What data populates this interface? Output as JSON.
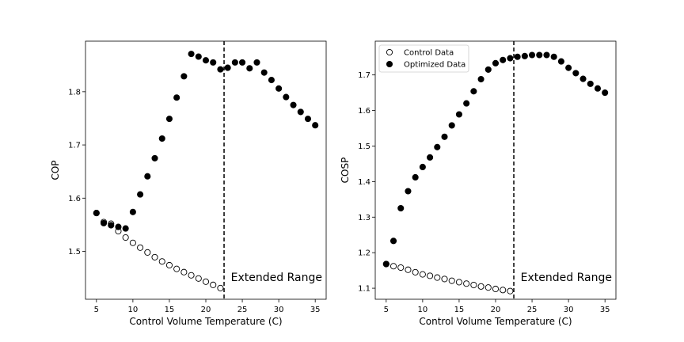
{
  "chart_data": [
    {
      "type": "scatter",
      "xlabel": "Control Volume Temperature (C)",
      "ylabel": "COP",
      "xlim": [
        3.5,
        36.5
      ],
      "ylim": [
        1.41,
        1.895
      ],
      "x_ticks": [
        5,
        10,
        15,
        20,
        25,
        30,
        35
      ],
      "y_ticks": [
        1.5,
        1.6,
        1.7,
        1.8
      ],
      "vline_x": 22.5,
      "annotation": "Extended Range",
      "legend": false,
      "series": [
        {
          "marker": "open-circle",
          "x": [
            5,
            6,
            7,
            8,
            9,
            10,
            11,
            12,
            13,
            14,
            15,
            16,
            17,
            18,
            19,
            20,
            21,
            22
          ],
          "y": [
            1.572,
            1.555,
            1.552,
            1.538,
            1.526,
            1.516,
            1.507,
            1.498,
            1.489,
            1.481,
            1.474,
            1.467,
            1.461,
            1.455,
            1.449,
            1.443,
            1.437,
            1.431
          ]
        },
        {
          "marker": "filled-circle",
          "x": [
            5,
            6,
            7,
            8,
            9,
            10,
            11,
            12,
            13,
            14,
            15,
            16,
            17,
            18,
            19,
            20,
            21,
            22,
            23,
            24,
            25,
            26,
            27,
            28,
            29,
            30,
            31,
            32,
            33,
            34,
            35
          ],
          "y": [
            1.572,
            1.553,
            1.549,
            1.546,
            1.543,
            1.574,
            1.607,
            1.641,
            1.675,
            1.712,
            1.749,
            1.789,
            1.829,
            1.871,
            1.866,
            1.859,
            1.855,
            1.842,
            1.845,
            1.855,
            1.855,
            1.844,
            1.855,
            1.836,
            1.822,
            1.806,
            1.79,
            1.775,
            1.762,
            1.749,
            1.737
          ]
        }
      ]
    },
    {
      "type": "scatter",
      "xlabel": "Control Volume Temperature (C)",
      "ylabel": "COSP",
      "xlim": [
        3.5,
        36.5
      ],
      "ylim": [
        1.069,
        1.795
      ],
      "x_ticks": [
        5,
        10,
        15,
        20,
        25,
        30,
        35
      ],
      "y_ticks": [
        1.1,
        1.2,
        1.3,
        1.4,
        1.5,
        1.6,
        1.7
      ],
      "vline_x": 22.5,
      "annotation": "Extended Range",
      "legend": true,
      "legend_position": "upper-left",
      "series": [
        {
          "name": "Control Data",
          "marker": "open-circle",
          "x": [
            5,
            6,
            7,
            8,
            9,
            10,
            11,
            12,
            13,
            14,
            15,
            16,
            17,
            18,
            19,
            20,
            21,
            22
          ],
          "y": [
            1.168,
            1.162,
            1.158,
            1.152,
            1.145,
            1.139,
            1.135,
            1.13,
            1.126,
            1.121,
            1.117,
            1.113,
            1.109,
            1.105,
            1.102,
            1.098,
            1.095,
            1.092
          ]
        },
        {
          "name": "Optimized Data",
          "marker": "filled-circle",
          "x": [
            5,
            6,
            7,
            8,
            9,
            10,
            11,
            12,
            13,
            14,
            15,
            16,
            17,
            18,
            19,
            20,
            21,
            22,
            23,
            24,
            25,
            26,
            27,
            28,
            29,
            30,
            31,
            32,
            33,
            34,
            35
          ],
          "y": [
            1.168,
            1.233,
            1.325,
            1.373,
            1.412,
            1.441,
            1.468,
            1.497,
            1.526,
            1.558,
            1.589,
            1.62,
            1.654,
            1.688,
            1.715,
            1.733,
            1.742,
            1.747,
            1.751,
            1.753,
            1.756,
            1.756,
            1.756,
            1.751,
            1.738,
            1.72,
            1.705,
            1.689,
            1.675,
            1.662,
            1.65
          ]
        }
      ]
    }
  ]
}
